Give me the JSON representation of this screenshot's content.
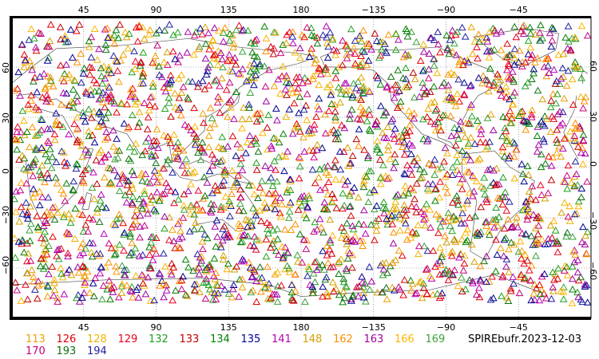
{
  "map": {
    "caption": "SPIREbufr.2023-12-03",
    "longitude_ticks_top": [
      "45",
      "90",
      "135",
      "180",
      "−135",
      "−90",
      "−45"
    ],
    "longitude_ticks_bottom": [
      "45",
      "90",
      "135",
      "180",
      "−135",
      "−90",
      "−45"
    ],
    "latitude_ticks_left": [
      "60",
      "30",
      "0",
      "−30",
      "−60"
    ],
    "latitude_ticks_right": [
      "60",
      "30",
      "0",
      "−30",
      "−60"
    ],
    "marker_shape": "open-triangle",
    "legend": [
      {
        "label": "113",
        "color": "#f0a000"
      },
      {
        "label": "126",
        "color": "#e00000"
      },
      {
        "label": "128",
        "color": "#f0b400"
      },
      {
        "label": "129",
        "color": "#e8001e"
      },
      {
        "label": "132",
        "color": "#20a020"
      },
      {
        "label": "133",
        "color": "#c00000"
      },
      {
        "label": "134",
        "color": "#008000"
      },
      {
        "label": "135",
        "color": "#000090"
      },
      {
        "label": "141",
        "color": "#b400b4"
      },
      {
        "label": "148",
        "color": "#d4a000"
      },
      {
        "label": "162",
        "color": "#ff8c00"
      },
      {
        "label": "163",
        "color": "#a000a0"
      },
      {
        "label": "166",
        "color": "#ffb400"
      },
      {
        "label": "169",
        "color": "#3ca03c"
      },
      {
        "label": "170",
        "color": "#c80080"
      },
      {
        "label": "193",
        "color": "#107010"
      },
      {
        "label": "194",
        "color": "#2020a0"
      }
    ]
  }
}
